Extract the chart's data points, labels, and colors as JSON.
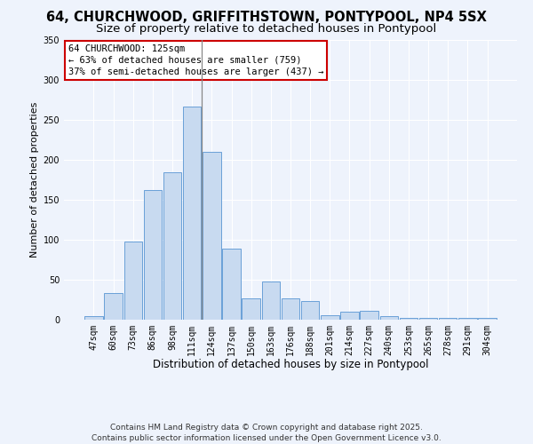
{
  "title": "64, CHURCHWOOD, GRIFFITHSTOWN, PONTYPOOL, NP4 5SX",
  "subtitle": "Size of property relative to detached houses in Pontypool",
  "xlabel": "Distribution of detached houses by size in Pontypool",
  "ylabel": "Number of detached properties",
  "bar_labels": [
    "47sqm",
    "60sqm",
    "73sqm",
    "86sqm",
    "98sqm",
    "111sqm",
    "124sqm",
    "137sqm",
    "150sqm",
    "163sqm",
    "176sqm",
    "188sqm",
    "201sqm",
    "214sqm",
    "227sqm",
    "240sqm",
    "253sqm",
    "265sqm",
    "278sqm",
    "291sqm",
    "304sqm"
  ],
  "bar_values": [
    5,
    33,
    98,
    162,
    185,
    267,
    210,
    89,
    27,
    48,
    27,
    23,
    6,
    10,
    11,
    4,
    2,
    2,
    2,
    2,
    2
  ],
  "bar_color": "#c8daf0",
  "bar_edge_color": "#6aa0d8",
  "vline_x": 5.5,
  "vline_color": "#888888",
  "ylim": [
    0,
    350
  ],
  "yticks": [
    0,
    50,
    100,
    150,
    200,
    250,
    300,
    350
  ],
  "annotation_title": "64 CHURCHWOOD: 125sqm",
  "annotation_line2": "← 63% of detached houses are smaller (759)",
  "annotation_line3": "37% of semi-detached houses are larger (437) →",
  "annotation_box_facecolor": "#ffffff",
  "annotation_box_edgecolor": "#cc0000",
  "footer_line1": "Contains HM Land Registry data © Crown copyright and database right 2025.",
  "footer_line2": "Contains public sector information licensed under the Open Government Licence v3.0.",
  "bg_color": "#eef3fc",
  "plot_bg_color": "#eef3fc",
  "title_fontsize": 10.5,
  "subtitle_fontsize": 9.5,
  "xlabel_fontsize": 8.5,
  "ylabel_fontsize": 8,
  "tick_fontsize": 7,
  "annot_fontsize": 7.5,
  "footer_fontsize": 6.5
}
